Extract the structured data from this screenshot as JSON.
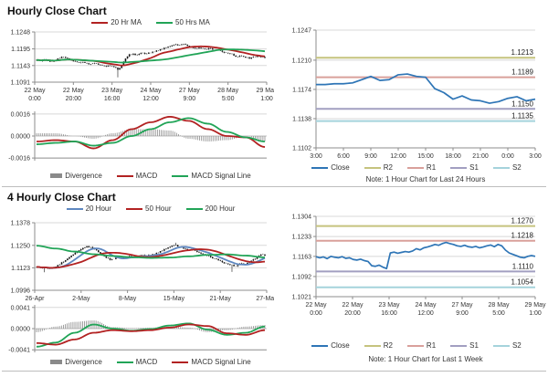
{
  "accent_colors": {
    "close_blue": "#2E75B6",
    "ma_red": "#B22222",
    "ma_green": "#21A457",
    "ma_blue": "#5E87C0",
    "candle": "#141414",
    "divergence_gray": "#8A8A8A",
    "r2_olive": "#C5C37E",
    "r1_pink": "#D9A09B",
    "s1_purple": "#A29FC1",
    "s2_cyan": "#A5D3DC"
  },
  "chart_data": [
    {
      "id": "hourly",
      "type": "candlestick",
      "title": "Hourly Close Chart",
      "price": {
        "y_ticks": [
          1.1091,
          1.1143,
          1.1195,
          1.1248
        ],
        "x_labels": [
          [
            "22 May",
            "0:00"
          ],
          [
            "22 May",
            "20:00"
          ],
          [
            "23 May",
            "16:00"
          ],
          [
            "24 May",
            "12:00"
          ],
          [
            "27 May",
            "9:00"
          ],
          [
            "28 May",
            "5:00"
          ],
          [
            "29 May",
            "1:00"
          ]
        ],
        "close": [
          1.116,
          1.1157,
          1.1162,
          1.1158,
          1.1155,
          1.1161,
          1.1166,
          1.117,
          1.1165,
          1.1159,
          1.1155,
          1.1152,
          1.1154,
          1.115,
          1.1148,
          1.115,
          1.1146,
          1.1143,
          1.114,
          1.1142,
          1.1138,
          1.113,
          1.1143,
          1.1165,
          1.1178,
          1.118,
          1.1176,
          1.1182,
          1.1179,
          1.1183,
          1.1186,
          1.119,
          1.1194,
          1.1198,
          1.1202,
          1.1206,
          1.1209,
          1.1207,
          1.121,
          1.1205,
          1.12,
          1.1196,
          1.1199,
          1.1196,
          1.1194,
          1.1196,
          1.1192,
          1.119,
          1.1186,
          1.1183,
          1.118,
          1.1174,
          1.117,
          1.1173,
          1.1168,
          1.1165,
          1.117,
          1.1174,
          1.1169,
          1.1167
        ],
        "spikes": [
          {
            "pos": 0.356,
            "low": 1.1106
          }
        ],
        "wick": 0.0005,
        "candle_color": "#141414",
        "ma": [
          {
            "label": "20 Hr MA",
            "period": 10,
            "color": "#B22222"
          },
          {
            "label": "50 Hrs MA",
            "period": 25,
            "color": "#21A457"
          }
        ]
      },
      "macd": {
        "y_ticks": [
          -0.0016,
          0.0,
          0.0016
        ],
        "macd_anchors": [
          -0.0004,
          -0.0003,
          -0.0004,
          -0.0009,
          -0.0003,
          0.0005,
          0.001,
          0.0014,
          0.0011,
          0.0005,
          0.0,
          -0.0001,
          -0.0008
        ],
        "signal_anchors": [
          -0.0006,
          -0.0005,
          -0.0004,
          -0.0007,
          -0.0005,
          0.0,
          0.0005,
          0.001,
          0.0013,
          0.0009,
          0.0003,
          -0.0001,
          -0.0004
        ],
        "colors": {
          "macd": "#B22222",
          "signal": "#21A457",
          "divergence": "#8A8A8A"
        },
        "legend": [
          "Divergence",
          "MACD",
          "MACD Signal Line"
        ]
      }
    },
    {
      "id": "h1_pivot",
      "type": "line",
      "y_ticks": [
        1.1102,
        1.1138,
        1.1174,
        1.121,
        1.1247
      ],
      "x_labels": [
        "3:00",
        "6:00",
        "9:00",
        "12:00",
        "15:00",
        "18:00",
        "21:00",
        "0:00",
        "3:00"
      ],
      "close": [
        1.118,
        1.118,
        1.1181,
        1.1181,
        1.1182,
        1.1186,
        1.119,
        1.1185,
        1.1186,
        1.1192,
        1.1193,
        1.119,
        1.1189,
        1.1175,
        1.117,
        1.1162,
        1.1166,
        1.1161,
        1.116,
        1.1157,
        1.1159,
        1.1163,
        1.1165,
        1.116,
        1.1162
      ],
      "close_label": "Close",
      "close_color": "#2E75B6",
      "pivots": [
        {
          "label": "R2",
          "value": 1.1213,
          "color": "#C5C37E"
        },
        {
          "label": "R1",
          "value": 1.1189,
          "color": "#D9A09B"
        },
        {
          "label": "S1",
          "value": 1.115,
          "color": "#A29FC1"
        },
        {
          "label": "S2",
          "value": 1.1135,
          "color": "#A5D3DC"
        }
      ],
      "note": "Note: 1 Hour Chart for Last 24 Hours"
    },
    {
      "id": "h4",
      "type": "candlestick",
      "title": "4 Hourly Close Chart",
      "price": {
        "y_ticks": [
          1.0996,
          1.1123,
          1.125,
          1.1378
        ],
        "x_labels": [
          "26-Apr",
          "2-May",
          "8-May",
          "15-May",
          "21-May",
          "27-May"
        ],
        "close": [
          1.1128,
          1.1122,
          1.1125,
          1.1118,
          1.1122,
          1.113,
          1.1142,
          1.1158,
          1.1175,
          1.1192,
          1.1208,
          1.1222,
          1.1235,
          1.1245,
          1.124,
          1.1228,
          1.1212,
          1.1196,
          1.118,
          1.1168,
          1.1172,
          1.118,
          1.1176,
          1.1184,
          1.119,
          1.1183,
          1.1188,
          1.1194,
          1.119,
          1.1196,
          1.12,
          1.1208,
          1.1218,
          1.1228,
          1.1238,
          1.1248,
          1.1252,
          1.1242,
          1.1232,
          1.1225,
          1.1228,
          1.122,
          1.121,
          1.12,
          1.1192,
          1.1183,
          1.1175,
          1.1165,
          1.1155,
          1.1148,
          1.114,
          1.1132,
          1.1138,
          1.1148,
          1.1142,
          1.1155,
          1.117,
          1.1185,
          1.1198,
          1.1192
        ],
        "spikes": [
          {
            "pos": 0.03,
            "low": 1.1098
          },
          {
            "pos": 0.61,
            "high": 1.1265
          },
          {
            "pos": 0.86,
            "low": 1.11
          }
        ],
        "wick": 0.0009,
        "candle_color": "#141414",
        "ma": [
          {
            "label": "20 Hour",
            "period": 5,
            "color": "#5E87C0"
          },
          {
            "label": "50 Hour",
            "period": 12,
            "color": "#B22222"
          },
          {
            "label": "200 Hour",
            "color": "#21A457",
            "anchors": [
              1.1248,
              1.1232,
              1.1215,
              1.12,
              1.119,
              1.1183,
              1.1179,
              1.1181,
              1.1188,
              1.1196,
              1.1199,
              1.1192,
              1.1182
            ]
          }
        ]
      },
      "macd": {
        "y_ticks": [
          -0.0041,
          0.0,
          0.0041
        ],
        "macd_anchors": [
          -0.0035,
          -0.0027,
          -0.0008,
          0.0008,
          0.0,
          -0.0004,
          -0.0001,
          0.0006,
          0.001,
          -0.0002,
          -0.0012,
          -0.0008,
          0.0004
        ],
        "signal_anchors": [
          -0.0028,
          -0.0031,
          -0.0021,
          -0.0008,
          -0.0003,
          -0.0005,
          -0.0003,
          0.0002,
          0.0008,
          0.0005,
          -0.0009,
          -0.0012,
          -0.0003
        ],
        "colors": {
          "macd": "#21A457",
          "signal": "#B22222",
          "divergence": "#8A8A8A"
        },
        "legend": [
          "Divergence",
          "MACD",
          "MACD Signal Line"
        ]
      }
    },
    {
      "id": "week_pivot",
      "type": "line",
      "y_ticks": [
        1.1021,
        1.1092,
        1.1163,
        1.1233,
        1.1304
      ],
      "x_labels": [
        [
          "22 May",
          "0:00"
        ],
        [
          "22 May",
          "20:00"
        ],
        [
          "23 May",
          "16:00"
        ],
        [
          "24 May",
          "12:00"
        ],
        [
          "27 May",
          "9:00"
        ],
        [
          "28 May",
          "5:00"
        ],
        [
          "29 May",
          "1:00"
        ]
      ],
      "close": [
        1.1162,
        1.1158,
        1.1161,
        1.1155,
        1.1163,
        1.116,
        1.1158,
        1.1162,
        1.1156,
        1.1158,
        1.1152,
        1.115,
        1.1153,
        1.1148,
        1.1145,
        1.113,
        1.1128,
        1.1132,
        1.1125,
        1.112,
        1.1175,
        1.1178,
        1.1174,
        1.1177,
        1.118,
        1.1178,
        1.1182,
        1.119,
        1.1186,
        1.1193,
        1.1196,
        1.12,
        1.1205,
        1.1202,
        1.1208,
        1.1212,
        1.1208,
        1.1205,
        1.12,
        1.1198,
        1.1202,
        1.1197,
        1.1195,
        1.1198,
        1.1193,
        1.1196,
        1.12,
        1.1203,
        1.1197,
        1.1205,
        1.12,
        1.1185,
        1.1175,
        1.117,
        1.1165,
        1.116,
        1.1158,
        1.1163,
        1.1166,
        1.1163
      ],
      "close_label": "Close",
      "close_color": "#2E75B6",
      "pivots": [
        {
          "label": "R2",
          "value": 1.127,
          "color": "#C5C37E"
        },
        {
          "label": "R1",
          "value": 1.1218,
          "color": "#D9A09B"
        },
        {
          "label": "S1",
          "value": 1.111,
          "color": "#A29FC1"
        },
        {
          "label": "S2",
          "value": 1.1054,
          "color": "#A5D3DC"
        }
      ],
      "note": "Note: 1 Hour Chart for Last 1 Week"
    }
  ]
}
